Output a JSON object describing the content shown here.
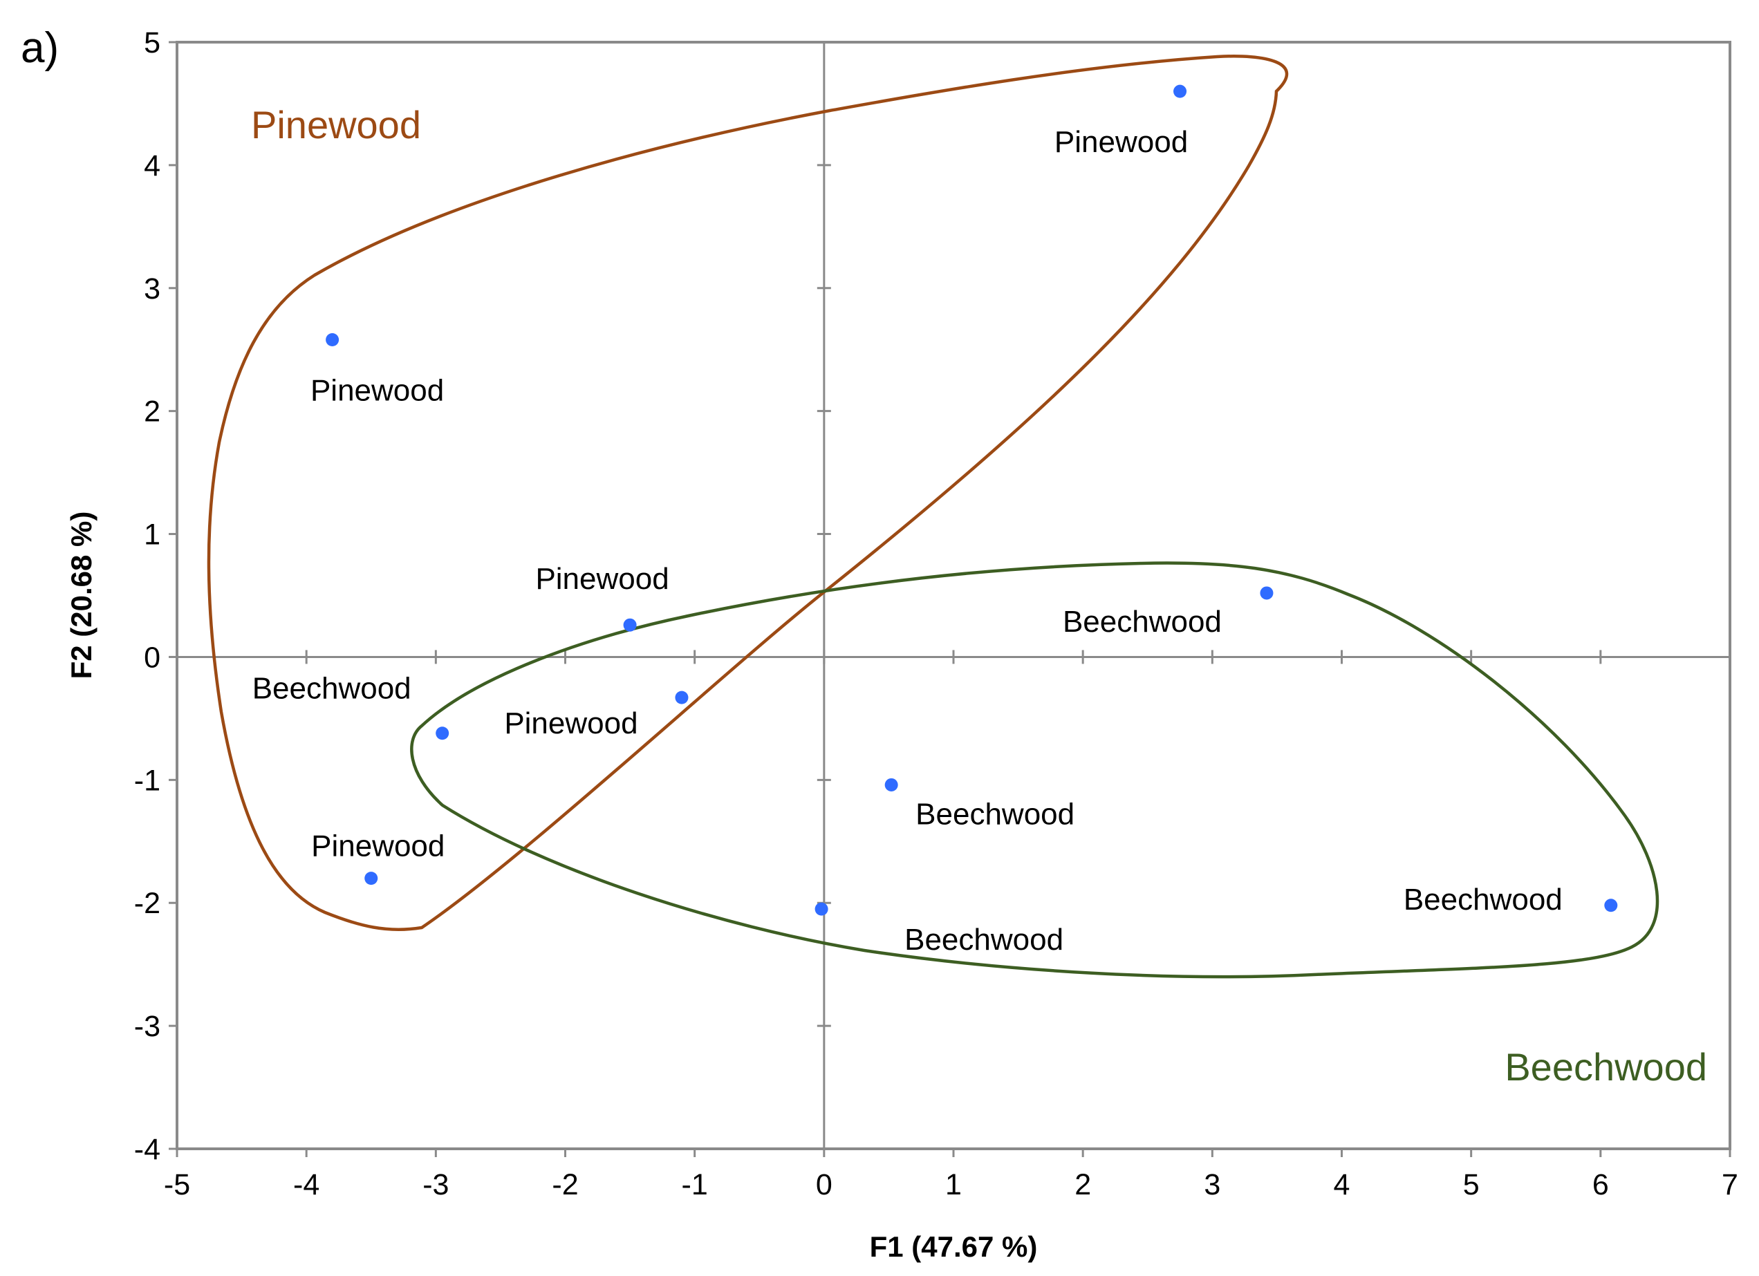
{
  "chart_data": {
    "type": "scatter",
    "panel_label": "a)",
    "title": "",
    "xlabel": "F1 (47.67 %)",
    "ylabel": "F2 (20.68 %)",
    "xlim": [
      -5,
      7
    ],
    "ylim": [
      -4,
      5
    ],
    "xticks": [
      "-5",
      "-4",
      "-3",
      "-2",
      "-1",
      "0",
      "1",
      "2",
      "3",
      "4",
      "5",
      "6",
      "7"
    ],
    "yticks": [
      "5",
      "4",
      "3",
      "2",
      "1",
      "0",
      "-1",
      "-2",
      "-3",
      "-4"
    ],
    "grid": false,
    "points": [
      {
        "x": 2.75,
        "y": 4.6,
        "label": "Pinewood"
      },
      {
        "x": -3.8,
        "y": 2.58,
        "label": "Pinewood"
      },
      {
        "x": -1.5,
        "y": 0.26,
        "label": "Pinewood"
      },
      {
        "x": -1.1,
        "y": -0.33,
        "label": "Pinewood"
      },
      {
        "x": -3.5,
        "y": -1.8,
        "label": "Pinewood"
      },
      {
        "x": -2.95,
        "y": -0.62,
        "label": "Beechwood"
      },
      {
        "x": 3.42,
        "y": 0.52,
        "label": "Beechwood"
      },
      {
        "x": 0.52,
        "y": -1.04,
        "label": "Beechwood"
      },
      {
        "x": -0.02,
        "y": -2.05,
        "label": "Beechwood"
      },
      {
        "x": 6.08,
        "y": -2.02,
        "label": "Beechwood"
      }
    ],
    "groups": [
      {
        "name": "Pinewood",
        "color": "#9c4a14",
        "legend_position": "top-left"
      },
      {
        "name": "Beechwood",
        "color": "#3d5e22",
        "legend_position": "bottom-right"
      }
    ],
    "point_color": "#2f6bff"
  }
}
